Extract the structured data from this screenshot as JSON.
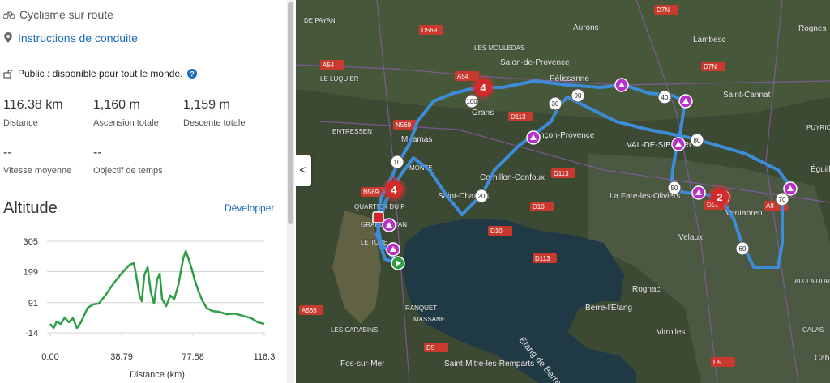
{
  "sidebar": {
    "activity": "Cyclisme sur route",
    "directions_link": "Instructions de conduite",
    "visibility": "Public : disponible pour tout le monde.",
    "stats": [
      {
        "value": "116.38 km",
        "label": "Distance"
      },
      {
        "value": "1,160 m",
        "label": "Ascension totale"
      },
      {
        "value": "1,159 m",
        "label": "Descente totale"
      },
      {
        "value": "--",
        "label": "Vitesse moyenne"
      },
      {
        "value": "--",
        "label": "Objectif de temps"
      }
    ],
    "altitude_title": "Altitude",
    "expand_link": "Développer"
  },
  "chart_data": {
    "type": "line",
    "x": [
      0,
      1.8,
      3.5,
      5.7,
      7.9,
      10.1,
      12.3,
      14.5,
      16.7,
      20.3,
      23.3,
      26.4,
      29.9,
      34.4,
      37.9,
      41.0,
      43.2,
      45.4,
      46.7,
      48.5,
      49.8,
      51.1,
      52.9,
      54.6,
      56.4,
      58.1,
      59.5,
      60.8,
      63.0,
      65.2,
      67.4,
      69.6,
      72.2,
      73.6,
      74.9,
      76.6,
      78.4,
      80.6,
      82.8,
      85.0,
      88.1,
      91.6,
      96.0,
      100.4,
      104.8,
      109.2,
      112.8,
      116.3
    ],
    "values": [
      17,
      3,
      25,
      17,
      39,
      23,
      37,
      3,
      23,
      73,
      85,
      88,
      116,
      158,
      186,
      209,
      223,
      229,
      186,
      116,
      96,
      186,
      215,
      130,
      88,
      172,
      192,
      104,
      79,
      116,
      104,
      152,
      243,
      271,
      249,
      215,
      172,
      130,
      96,
      73,
      62,
      59,
      51,
      53,
      45,
      37,
      23,
      17
    ],
    "color": "#2e9e44",
    "xlabel": "Distance (km)",
    "xlim": [
      0,
      116.3
    ],
    "xticks": [
      {
        "value": 0,
        "label": "0.00"
      },
      38.79,
      77.58,
      116.3
    ],
    "ylim": [
      -14,
      305
    ],
    "yticks": [
      -14,
      91,
      199,
      305
    ],
    "grid": true
  },
  "map": {
    "collapse": "<",
    "labels": [
      "DE PAYAN",
      "D569",
      "LES MOULEDAS",
      "Aurons",
      "D7N",
      "Lambesc",
      "Rognes",
      "A54",
      "Salon-de-Provence",
      "Pélissanne",
      "D7N",
      "A54",
      "LE LUQUIER",
      "Saint-Cannat",
      "Grans",
      "D113",
      "N569",
      "PUYRICARD",
      "ENTRESSEN",
      "Lançon-Provence",
      "VAL-DE-SIBOURG",
      "Miramas",
      "MONTE",
      "Cornillon-Confoux",
      "D113",
      "Éguilles",
      "N569",
      "Saint-Chamas",
      "La Fare-les-Oliviers",
      "Ventabren",
      "A8",
      "QUARTIER DU P",
      "D10",
      "D10",
      "GRAND BAYAN",
      "D10",
      "LE TUBE",
      "Velaux",
      "D113",
      "AIX LA DURANNE",
      "Rognac",
      "RANQUET",
      "Berre-l'Étang",
      "A568",
      "MASSANE",
      "LES CARABINS",
      "Vitrolles",
      "CALAS",
      "Étang de Berre",
      "D5",
      "Fos-sur-Mer",
      "Saint-Mitre-les-Remparts",
      "D9",
      "Cabriès"
    ],
    "distance_markers": [
      10,
      20,
      30,
      40,
      50,
      60,
      70,
      80,
      90,
      100
    ],
    "clusters": [
      4,
      4,
      2
    ]
  }
}
